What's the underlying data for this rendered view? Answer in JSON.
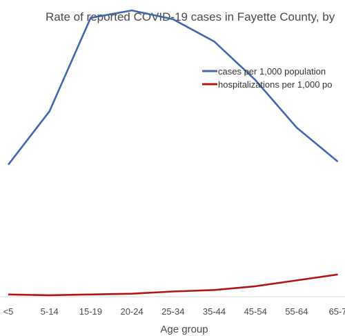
{
  "chart_data": {
    "type": "line",
    "title": "Rate of reported COVID-19 cases in Fayette County, by",
    "xlabel": "Age group",
    "ylabel": "",
    "categories": [
      "<5",
      "5-14",
      "15-19",
      "20-24",
      "25-34",
      "35-44",
      "45-54",
      "55-64",
      "65-7"
    ],
    "ylim": [
      0,
      200
    ],
    "grid": false,
    "legend": "top-right",
    "series": [
      {
        "name": "cases per 1,000 population",
        "color": "#4066ad",
        "values": [
          89,
          125,
          188,
          193,
          187,
          172,
          146,
          114,
          91
        ]
      },
      {
        "name": "hospitalizations per 1,000 po",
        "color": "#b01515",
        "values": [
          1.5,
          1,
          1.5,
          2,
          3.5,
          4.5,
          7,
          11,
          15
        ]
      }
    ]
  }
}
